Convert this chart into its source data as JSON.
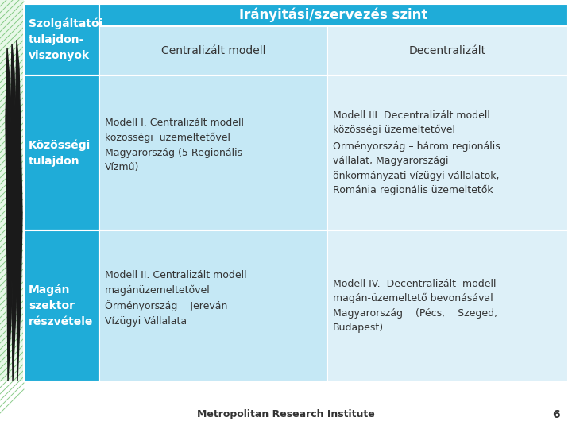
{
  "bg_color": "#ffffff",
  "header_blue": "#1facd8",
  "cell_blue_light": "#c5e8f5",
  "cell_blue_lighter": "#ddf0f8",
  "left_col_blue": "#1facd8",
  "border_color": "#ffffff",
  "header_text_color": "#ffffff",
  "body_text_color": "#333333",
  "footer_text": "Metropolitan Research Institute",
  "footer_page": "6",
  "title_text": "Irányitási/szervezés szint",
  "col1_header_line1": "Szolgáltatói",
  "col1_header_line2": "tulajdon-",
  "col1_header_line3": "viszonyok",
  "col2_header": "Centralizált modell",
  "col3_header": "Decentralizált",
  "row2_label_line1": "Közösségi",
  "row2_label_line2": "tulajdon",
  "row3_label_line1": "Magán",
  "row3_label_line2": "szektor",
  "row3_label_line3": "részvétele",
  "row2_col2_lines": [
    "Modell I. Centralizált modell",
    "közösségi  üzemeltetővel",
    "Magyarország (5 Regionális",
    "Vízmű)"
  ],
  "row2_col3_lines": [
    "Modell III. Decentralizált modell",
    "közösségi üzemeltetővel",
    "Örményország – három regionális",
    "vállalat, Magyarországi",
    "önkormányzati vízügyi vállalatok,",
    "Románia regionális üzemeltetők"
  ],
  "row3_col2_lines": [
    "Modell II. Centralizált modell",
    "magánüzemeltetővel",
    "Örményország    Jereván",
    "Vízügyi Vállalata"
  ],
  "row3_col3_lines": [
    "Modell IV.  Decentralizált  modell",
    "magán-üzemeltető bevonásával",
    "Magyarország    (Pécs,    Szeged,",
    "Budapest)"
  ],
  "stripe_color": "#d4f0d4",
  "stripe_line_color": "#5cb85c",
  "blade_color": "#1a1a1a"
}
